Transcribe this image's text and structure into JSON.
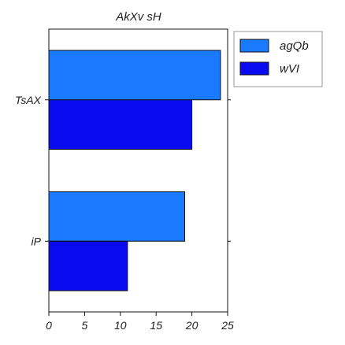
{
  "chart_data": {
    "type": "bar",
    "orientation": "horizontal",
    "title": "AkXv sH",
    "xlabel": "",
    "ylabel": "",
    "categories": [
      "TsAX",
      "iP"
    ],
    "series": [
      {
        "name": "agQb",
        "color": "#1a7aff",
        "values": [
          24,
          19
        ]
      },
      {
        "name": "wVI",
        "color": "#0a0af0",
        "values": [
          20,
          11
        ]
      }
    ],
    "xlim": [
      0,
      25
    ],
    "xticks": [
      0,
      5,
      10,
      15,
      20,
      25
    ],
    "grid": false,
    "legend_position": "outside-top-right"
  }
}
